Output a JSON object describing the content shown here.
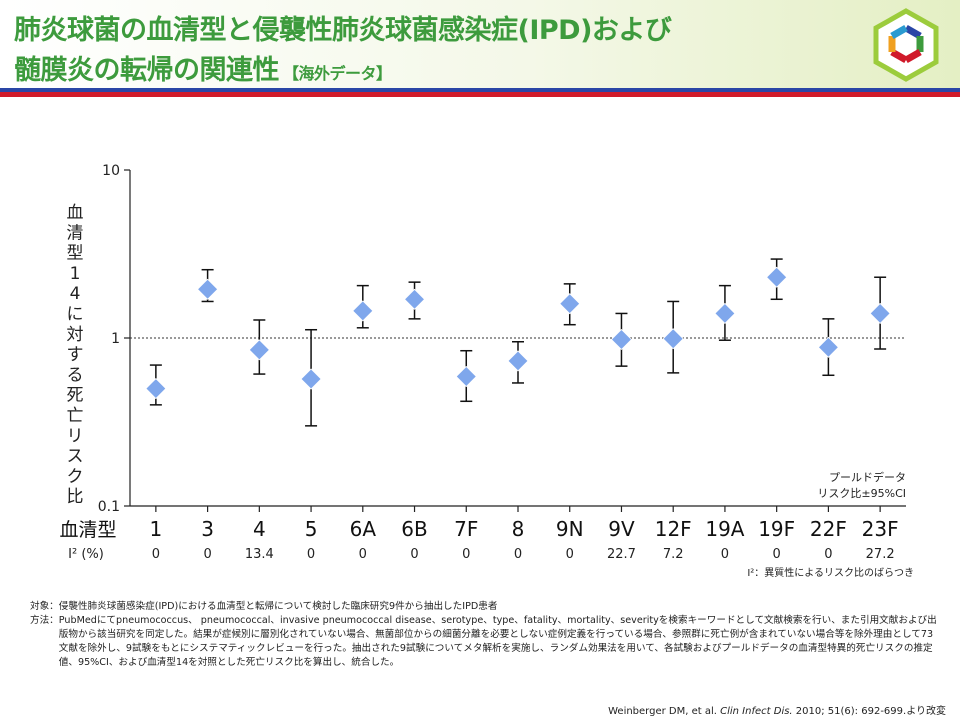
{
  "header": {
    "title_line1": "肺炎球菌の血清型と侵襲性肺炎球菌感染症(IPD)および",
    "title_line2": "髄膜炎の転帰の関連性",
    "title_suffix": "【海外データ】",
    "logo_icon": "hexagon-ring-logo-icon",
    "colors": {
      "title": "#3d9b3d",
      "rule_blue": "#2a46a6",
      "rule_red": "#d01a2a",
      "marker": "#7fa7ec"
    }
  },
  "chart_data": {
    "type": "scatter",
    "subtype": "forest-plot-with-error-bars",
    "ylabel": "血清型14に対する死亡リスク比",
    "y_scale": "log",
    "ylim": [
      0.1,
      10
    ],
    "yticks": [
      "10",
      "1",
      "0.1"
    ],
    "reference_line": 1,
    "x_row_label": "血清型",
    "categories": [
      "1",
      "3",
      "4",
      "5",
      "6A",
      "6B",
      "7F",
      "8",
      "9N",
      "9V",
      "12F",
      "19A",
      "19F",
      "22F",
      "23F"
    ],
    "series": [
      {
        "values": [
          0.5,
          1.95,
          0.85,
          0.57,
          1.45,
          1.7,
          0.59,
          0.73,
          1.6,
          0.98,
          0.99,
          1.4,
          2.3,
          0.88,
          1.4
        ],
        "ci_low": [
          0.4,
          1.65,
          0.61,
          0.3,
          1.15,
          1.3,
          0.42,
          0.54,
          1.2,
          0.68,
          0.62,
          0.97,
          1.7,
          0.6,
          0.86
        ],
        "ci_high": [
          0.69,
          2.55,
          1.28,
          1.12,
          2.05,
          2.15,
          0.84,
          0.95,
          2.1,
          1.4,
          1.65,
          2.05,
          2.95,
          1.3,
          2.3
        ]
      }
    ],
    "i2_label": "I² (%)",
    "i2_values": [
      "0",
      "0",
      "13.4",
      "0",
      "0",
      "0",
      "0",
      "0",
      "0",
      "22.7",
      "7.2",
      "0",
      "0",
      "0",
      "27.2"
    ],
    "pooled_note": [
      "プールドデータ",
      "リスク比±95%CI"
    ],
    "i2_note": "I²：異質性によるリスク比のばらつき",
    "grid": false
  },
  "footnote": {
    "target_key": "対象：",
    "target_text": "侵襲性肺炎球菌感染症(IPD)における血清型と転帰について検討した臨床研究9件から抽出したIPD患者",
    "method_key": "方法：",
    "method_text": "PubMedにてpneumococcus、 pneumococcal、invasive pneumococcal disease、serotype、type、fatality、mortality、severityを検索キーワードとして文献検索を行い、また引用文献および出版物から該当研究を同定した。結果が症候別に層別化されていない場合、無菌部位からの細菌分離を必要としない症例定義を行っている場合、参照群に死亡例が含まれていない場合等を除外理由として73文献を除外し、9試験をもとにシステマティックレビューを行った。抽出された9試験についてメタ解析を実施し、ランダム効果法を用いて、各試験およびプールドデータの血清型特異的死亡リスクの推定値、95%CI、および血清型14を対照とした死亡リスク比を算出し、統合した。"
  },
  "citation": {
    "authors": "Weinberger DM, et al.",
    "journal": "Clin Infect Dis.",
    "details": "2010; 51(6): 692-699.より改変"
  }
}
